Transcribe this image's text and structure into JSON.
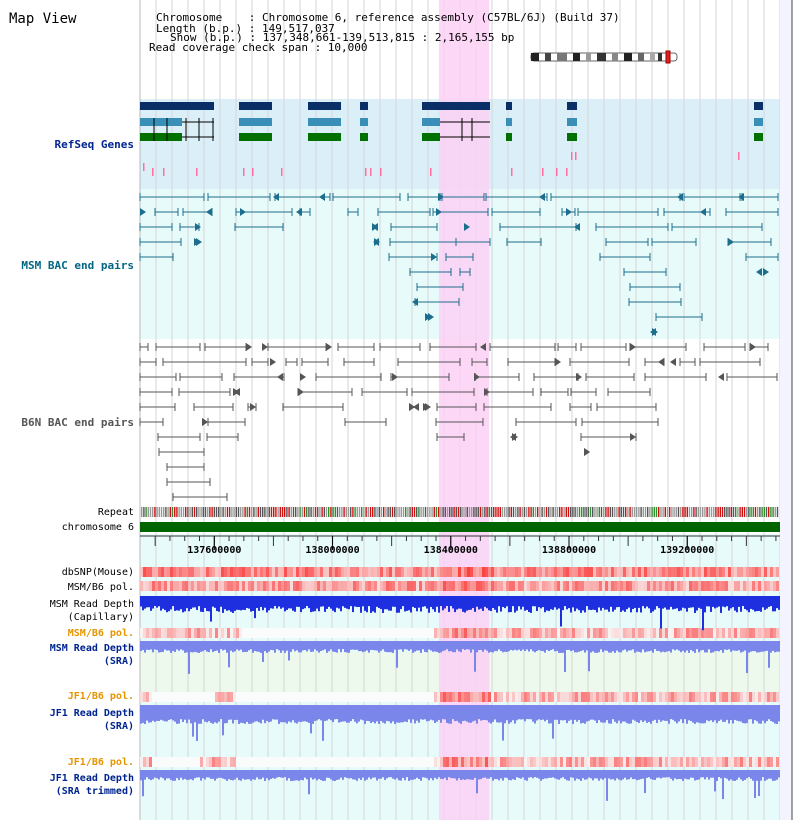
{
  "title": "Map View",
  "info": {
    "chromosome": "Chromosome    : Chromosome 6, reference assembly (C57BL/6J) (Build 37)",
    "length": "Length (b.p.) : 149,517,037",
    "show": "Show (b.p.) : 137,348,661-139,513,815 : 2,165,155 bp",
    "coverage": "Read coverage check span : 10,000"
  },
  "region": {
    "start": 137348661,
    "end": 139513815,
    "highlight_start": 138360000,
    "highlight_end": 138530000
  },
  "tracks": {
    "refseq": "RefSeq Genes",
    "msm_bac": "MSM BAC end pairs",
    "b6n_bac": "B6N BAC end pairs",
    "repeat": "Repeat",
    "chromosome": "chromosome 6",
    "dbsnp": "dbSNP(Mouse)",
    "msm_b6_pol": "MSM/B6 pol.",
    "msm_read_depth_cap_1": "MSM Read Depth",
    "msm_read_depth_cap_2": "(Capillary)",
    "msm_b6_pol2": "MSM/B6 pol.",
    "msm_read_depth_sra_1": "MSM Read Depth",
    "msm_read_depth_sra_2": "(SRA)",
    "jf1_b6_pol": "JF1/B6 pol.",
    "jf1_read_depth_sra_1": "JF1 Read Depth",
    "jf1_read_depth_sra_2": "(SRA)",
    "jf1_b6_pol2": "JF1/B6 pol.",
    "jf1_read_depth_trim_1": "JF1 Read Depth",
    "jf1_read_depth_trim_2": "(SRA trimmed)"
  },
  "axis": {
    "ticks": [
      137600000,
      138000000,
      138400000,
      138800000,
      139200000
    ]
  },
  "colors": {
    "refseq_band": "#dbeff9",
    "bac_band": "#e7fbfb",
    "highlight": "#fbd0f4",
    "gene_navy": "#0a2f66",
    "gene_teal": "#3a8fb8",
    "gene_green": "#007000",
    "msm_line": "#1d6e8c",
    "b6n_line": "#555555",
    "depth_cap": "#1e2fe0",
    "depth_sra": "#7a86ea",
    "label_navy": "#00248f",
    "label_teal": "#006684",
    "label_orange": "#e69500"
  }
}
